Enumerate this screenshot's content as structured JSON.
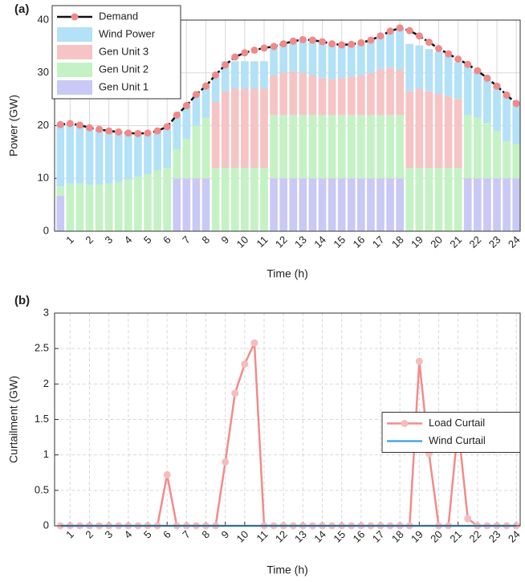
{
  "chart_data": [
    {
      "type": "bar",
      "stacked": true,
      "title": "(a)",
      "x_label": "Time (h)",
      "y_label": "Power (GW)",
      "x": [
        0.5,
        1,
        1.5,
        2,
        2.5,
        3,
        3.5,
        4,
        4.5,
        5,
        5.5,
        6,
        6.5,
        7,
        7.5,
        8,
        8.5,
        9,
        9.5,
        10,
        10.5,
        11,
        11.5,
        12,
        12.5,
        13,
        13.5,
        14,
        14.5,
        15,
        15.5,
        16,
        16.5,
        17,
        17.5,
        18,
        18.5,
        19,
        19.5,
        20,
        20.5,
        21,
        21.5,
        22,
        22.5,
        23,
        23.5,
        24
      ],
      "xlim": [
        0.2,
        24.2
      ],
      "xticks": [
        1,
        2,
        3,
        4,
        5,
        6,
        7,
        8,
        9,
        10,
        11,
        12,
        13,
        14,
        15,
        16,
        17,
        18,
        19,
        20,
        21,
        22,
        23,
        24
      ],
      "ylim": [
        0,
        40
      ],
      "yticks": [
        0,
        10,
        20,
        30,
        40
      ],
      "grid": true,
      "legend": "upper left",
      "series": [
        {
          "name": "Demand",
          "type": "line",
          "color": "#111111",
          "marker_color": "#f08a8a",
          "values": [
            20.2,
            20.4,
            20.1,
            19.6,
            19.3,
            19.0,
            18.8,
            18.6,
            18.5,
            18.6,
            19.0,
            19.8,
            22.0,
            23.8,
            25.9,
            27.5,
            29.6,
            31.5,
            33.0,
            33.8,
            34.3,
            34.7,
            35.0,
            35.5,
            36.0,
            36.3,
            36.2,
            35.9,
            35.5,
            35.3,
            35.4,
            35.7,
            36.2,
            37.0,
            37.9,
            38.5,
            38.0,
            37.0,
            35.8,
            34.6,
            33.6,
            32.6,
            31.6,
            30.4,
            29.0,
            27.5,
            25.8,
            24.2
          ]
        },
        {
          "name": "Wind Power",
          "color": "#b3e1f7",
          "values": [
            11.7,
            11.4,
            11.1,
            10.8,
            10.4,
            10.0,
            9.5,
            8.8,
            8.2,
            7.8,
            7.5,
            7.8,
            6.5,
            6.3,
            5.9,
            6.0,
            5.1,
            5.7,
            5.2,
            5.2,
            5.2,
            5.2,
            5.5,
            5.5,
            5.7,
            6.3,
            6.7,
            6.9,
            6.7,
            6.3,
            6.1,
            6.2,
            6.2,
            6.3,
            6.9,
            8.0,
            9.0,
            8.2,
            8.0,
            8.0,
            7.8,
            7.0,
            9.6,
            8.9,
            8.5,
            8.5,
            8.8,
            7.7
          ]
        },
        {
          "name": "Gen Unit 3",
          "color": "#f6c4c4",
          "values": [
            0,
            0,
            0,
            0,
            0,
            0,
            0,
            0,
            0,
            0,
            0,
            0,
            0,
            0,
            0,
            0,
            12.5,
            14.5,
            15,
            15,
            15,
            15,
            7.5,
            8,
            8.3,
            8,
            7.5,
            7,
            6.8,
            7,
            7.3,
            7.5,
            8,
            8.7,
            9,
            8.5,
            14.5,
            15,
            14.5,
            14,
            13.5,
            13,
            0,
            0,
            0,
            0,
            0,
            0
          ]
        },
        {
          "name": "Gen Unit 2",
          "color": "#c4f2c4",
          "values": [
            1.8,
            9,
            9,
            8.8,
            8.9,
            9,
            9.3,
            9.8,
            10.3,
            10.8,
            11.5,
            12,
            5.5,
            7.5,
            10,
            11.5,
            12,
            12,
            12,
            12,
            12,
            12,
            12,
            12,
            12,
            12,
            12,
            12,
            12,
            12,
            12,
            12,
            12,
            12,
            12,
            12,
            12,
            12,
            12,
            12,
            12,
            12,
            12,
            11.5,
            10.5,
            9,
            7,
            6.5
          ]
        },
        {
          "name": "Gen Unit 1",
          "color": "#c9c9f5",
          "values": [
            6.7,
            0,
            0,
            0,
            0,
            0,
            0,
            0,
            0,
            0,
            0,
            0,
            10,
            10,
            10,
            10,
            0,
            0,
            0,
            0,
            0,
            0,
            10,
            10,
            10,
            10,
            10,
            10,
            10,
            10,
            10,
            10,
            10,
            10,
            10,
            10,
            0,
            0,
            0,
            0,
            0,
            0,
            10,
            10,
            10,
            10,
            10,
            10
          ]
        }
      ]
    },
    {
      "type": "line",
      "title": "(b)",
      "x_label": "Time (h)",
      "y_label": "Curtailment (GW)",
      "x": [
        0.5,
        1,
        1.5,
        2,
        2.5,
        3,
        3.5,
        4,
        4.5,
        5,
        5.5,
        6,
        6.5,
        7,
        7.5,
        8,
        8.5,
        9,
        9.5,
        10,
        10.5,
        11,
        11.5,
        12,
        12.5,
        13,
        13.5,
        14,
        14.5,
        15,
        15.5,
        16,
        16.5,
        17,
        17.5,
        18,
        18.5,
        19,
        19.5,
        20,
        20.5,
        21,
        21.5,
        22,
        22.5,
        23,
        23.5,
        24
      ],
      "xlim": [
        0.2,
        24.2
      ],
      "xticks": [
        1,
        2,
        3,
        4,
        5,
        6,
        7,
        8,
        9,
        10,
        11,
        12,
        13,
        14,
        15,
        16,
        17,
        18,
        19,
        20,
        21,
        22,
        23,
        24
      ],
      "ylim": [
        0,
        3
      ],
      "yticks": [
        0,
        0.5,
        1,
        1.5,
        2,
        2.5,
        3
      ],
      "grid": true,
      "legend": "right",
      "series": [
        {
          "name": "Load Curtail",
          "color": "#f28b8b",
          "marker_color": "#f7bcbc",
          "marker": true,
          "values": [
            0,
            0,
            0,
            0,
            0,
            0,
            0,
            0,
            0,
            0,
            0,
            0.72,
            0,
            0,
            0,
            0,
            0,
            0.9,
            1.87,
            2.28,
            2.58,
            0,
            0,
            0,
            0,
            0,
            0,
            0,
            0,
            0,
            0,
            0,
            0,
            0,
            0,
            0,
            0,
            2.32,
            1.02,
            0,
            0,
            1.4,
            0.1,
            0,
            0,
            0,
            0,
            0
          ]
        },
        {
          "name": "Wind Curtail",
          "color": "#4ea6e6",
          "marker": false,
          "values": [
            0,
            0,
            0,
            0,
            0,
            0,
            0,
            0,
            0,
            0,
            0,
            0,
            0,
            0,
            0,
            0,
            0,
            0,
            0,
            0,
            0,
            0,
            0,
            0,
            0,
            0,
            0,
            0,
            0,
            0,
            0,
            0,
            0,
            0,
            0,
            0,
            0,
            0,
            0,
            0,
            0,
            0,
            0,
            0,
            0,
            0,
            0,
            0
          ]
        }
      ]
    }
  ]
}
